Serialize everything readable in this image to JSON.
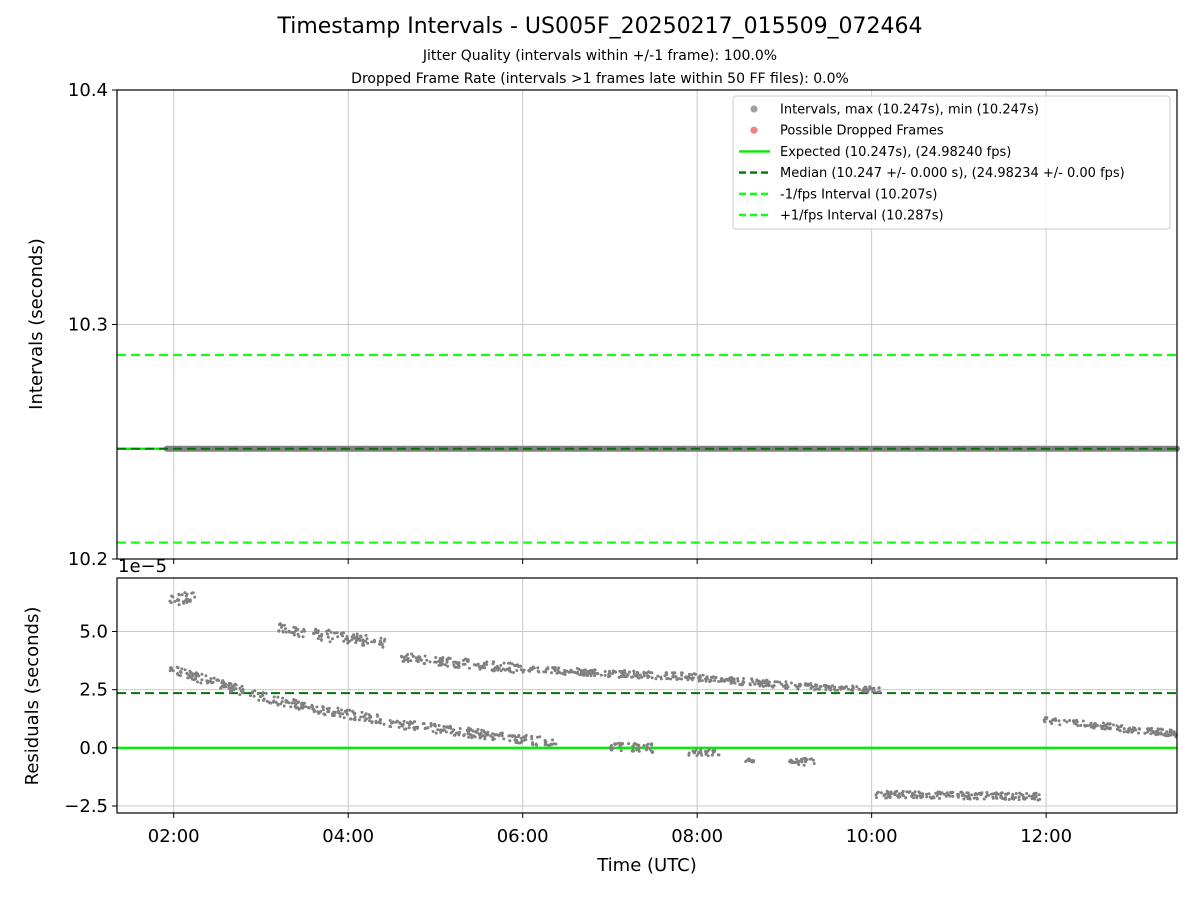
{
  "figure": {
    "title": "Timestamp Intervals - US005F_20250217_015509_072464",
    "subtitle_1": "Jitter Quality (intervals within +/-1 frame): 100.0%",
    "subtitle_2": "Dropped Frame Rate (intervals >1 frames late within 50 FF files): 0.0%"
  },
  "colors": {
    "intervals": "#808080",
    "dropped": "#f0555a",
    "expected": "#00ee00",
    "median": "#007700",
    "fps_interval": "#11ff11",
    "grid": "#c8c8c8"
  },
  "chart_data": [
    {
      "type": "scatter",
      "ylabel": "Intervals (seconds)",
      "xlabel": "",
      "ylim": [
        10.2,
        10.4
      ],
      "xlim_hours": [
        1.35,
        13.5
      ],
      "yticks": [
        10.2,
        10.3,
        10.4
      ],
      "ytick_labels": [
        "10.2",
        "10.3",
        "10.4"
      ],
      "grid": true,
      "legend_position": "upper-right",
      "legend": [
        "Intervals, max (10.247s), min (10.247s)",
        "Possible Dropped Frames",
        "Expected (10.247s), (24.98240 fps)",
        "Median (10.247 +/- 0.000 s), (24.98234 +/- 0.00 fps)",
        "-1/fps Interval (10.207s)",
        "+1/fps Interval (10.287s)"
      ],
      "series": [
        {
          "name": "Intervals, max (10.247s), min (10.247s)",
          "x_range_hours": [
            1.92,
            13.5
          ],
          "y": 10.247
        },
        {
          "name": "Possible Dropped Frames",
          "points": []
        }
      ],
      "lines": {
        "expected": 10.247,
        "median": 10.247,
        "minus_1_fps": 10.207,
        "plus_1_fps": 10.287
      }
    },
    {
      "type": "scatter",
      "ylabel": "Residuals (seconds)",
      "xlabel": "Time (UTC)",
      "scale_label": "1e−5",
      "ylim": [
        -2.8,
        7.3
      ],
      "yticks": [
        -2.5,
        0.0,
        2.5,
        5.0
      ],
      "ytick_labels": [
        "−2.5",
        "0.0",
        "2.5",
        "5.0"
      ],
      "xticks_hours": [
        2,
        4,
        6,
        8,
        10,
        12
      ],
      "xtick_labels": [
        "02:00",
        "04:00",
        "06:00",
        "08:00",
        "10:00",
        "12:00"
      ],
      "grid": true,
      "lines": {
        "expected": 0.0,
        "median": 2.35
      },
      "segments": [
        {
          "x": [
            1.92,
            2.25
          ],
          "y": [
            6.3,
            6.5
          ],
          "spread": 0.25
        },
        {
          "x": [
            1.95,
            3.0
          ],
          "y": [
            3.4,
            2.2
          ],
          "spread": 0.2
        },
        {
          "x": [
            3.0,
            3.6
          ],
          "y": [
            2.2,
            1.7
          ],
          "spread": 0.2
        },
        {
          "x": [
            3.6,
            4.4
          ],
          "y": [
            1.7,
            1.2
          ],
          "spread": 0.2
        },
        {
          "x": [
            4.4,
            5.5
          ],
          "y": [
            1.1,
            0.6
          ],
          "spread": 0.2
        },
        {
          "x": [
            5.5,
            6.4
          ],
          "y": [
            0.6,
            0.2
          ],
          "spread": 0.2
        },
        {
          "x": [
            3.2,
            3.5
          ],
          "y": [
            5.2,
            4.9
          ],
          "spread": 0.2
        },
        {
          "x": [
            3.6,
            4.45
          ],
          "y": [
            4.9,
            4.5
          ],
          "spread": 0.25
        },
        {
          "x": [
            4.6,
            5.1
          ],
          "y": [
            3.9,
            3.7
          ],
          "spread": 0.2
        },
        {
          "x": [
            5.1,
            6.0
          ],
          "y": [
            3.7,
            3.4
          ],
          "spread": 0.2
        },
        {
          "x": [
            6.0,
            7.0
          ],
          "y": [
            3.4,
            3.2
          ],
          "spread": 0.15
        },
        {
          "x": [
            7.0,
            8.0
          ],
          "y": [
            3.2,
            3.05
          ],
          "spread": 0.15
        },
        {
          "x": [
            8.0,
            9.4
          ],
          "y": [
            3.0,
            2.6
          ],
          "spread": 0.15
        },
        {
          "x": [
            9.4,
            10.1
          ],
          "y": [
            2.6,
            2.5
          ],
          "spread": 0.12
        },
        {
          "x": [
            10.05,
            11.95
          ],
          "y": [
            -2.0,
            -2.1
          ],
          "spread": 0.15
        },
        {
          "x": [
            11.95,
            13.5
          ],
          "y": [
            1.2,
            0.6
          ],
          "spread": 0.15
        },
        {
          "x": [
            7.0,
            7.5
          ],
          "y": [
            0.0,
            0.0
          ],
          "spread": 0.2
        },
        {
          "x": [
            7.9,
            8.25
          ],
          "y": [
            -0.2,
            -0.2
          ],
          "spread": 0.15
        },
        {
          "x": [
            8.55,
            8.65
          ],
          "y": [
            -0.5,
            -0.5
          ],
          "spread": 0.1
        },
        {
          "x": [
            9.05,
            9.35
          ],
          "y": [
            -0.6,
            -0.6
          ],
          "spread": 0.15
        }
      ]
    }
  ]
}
